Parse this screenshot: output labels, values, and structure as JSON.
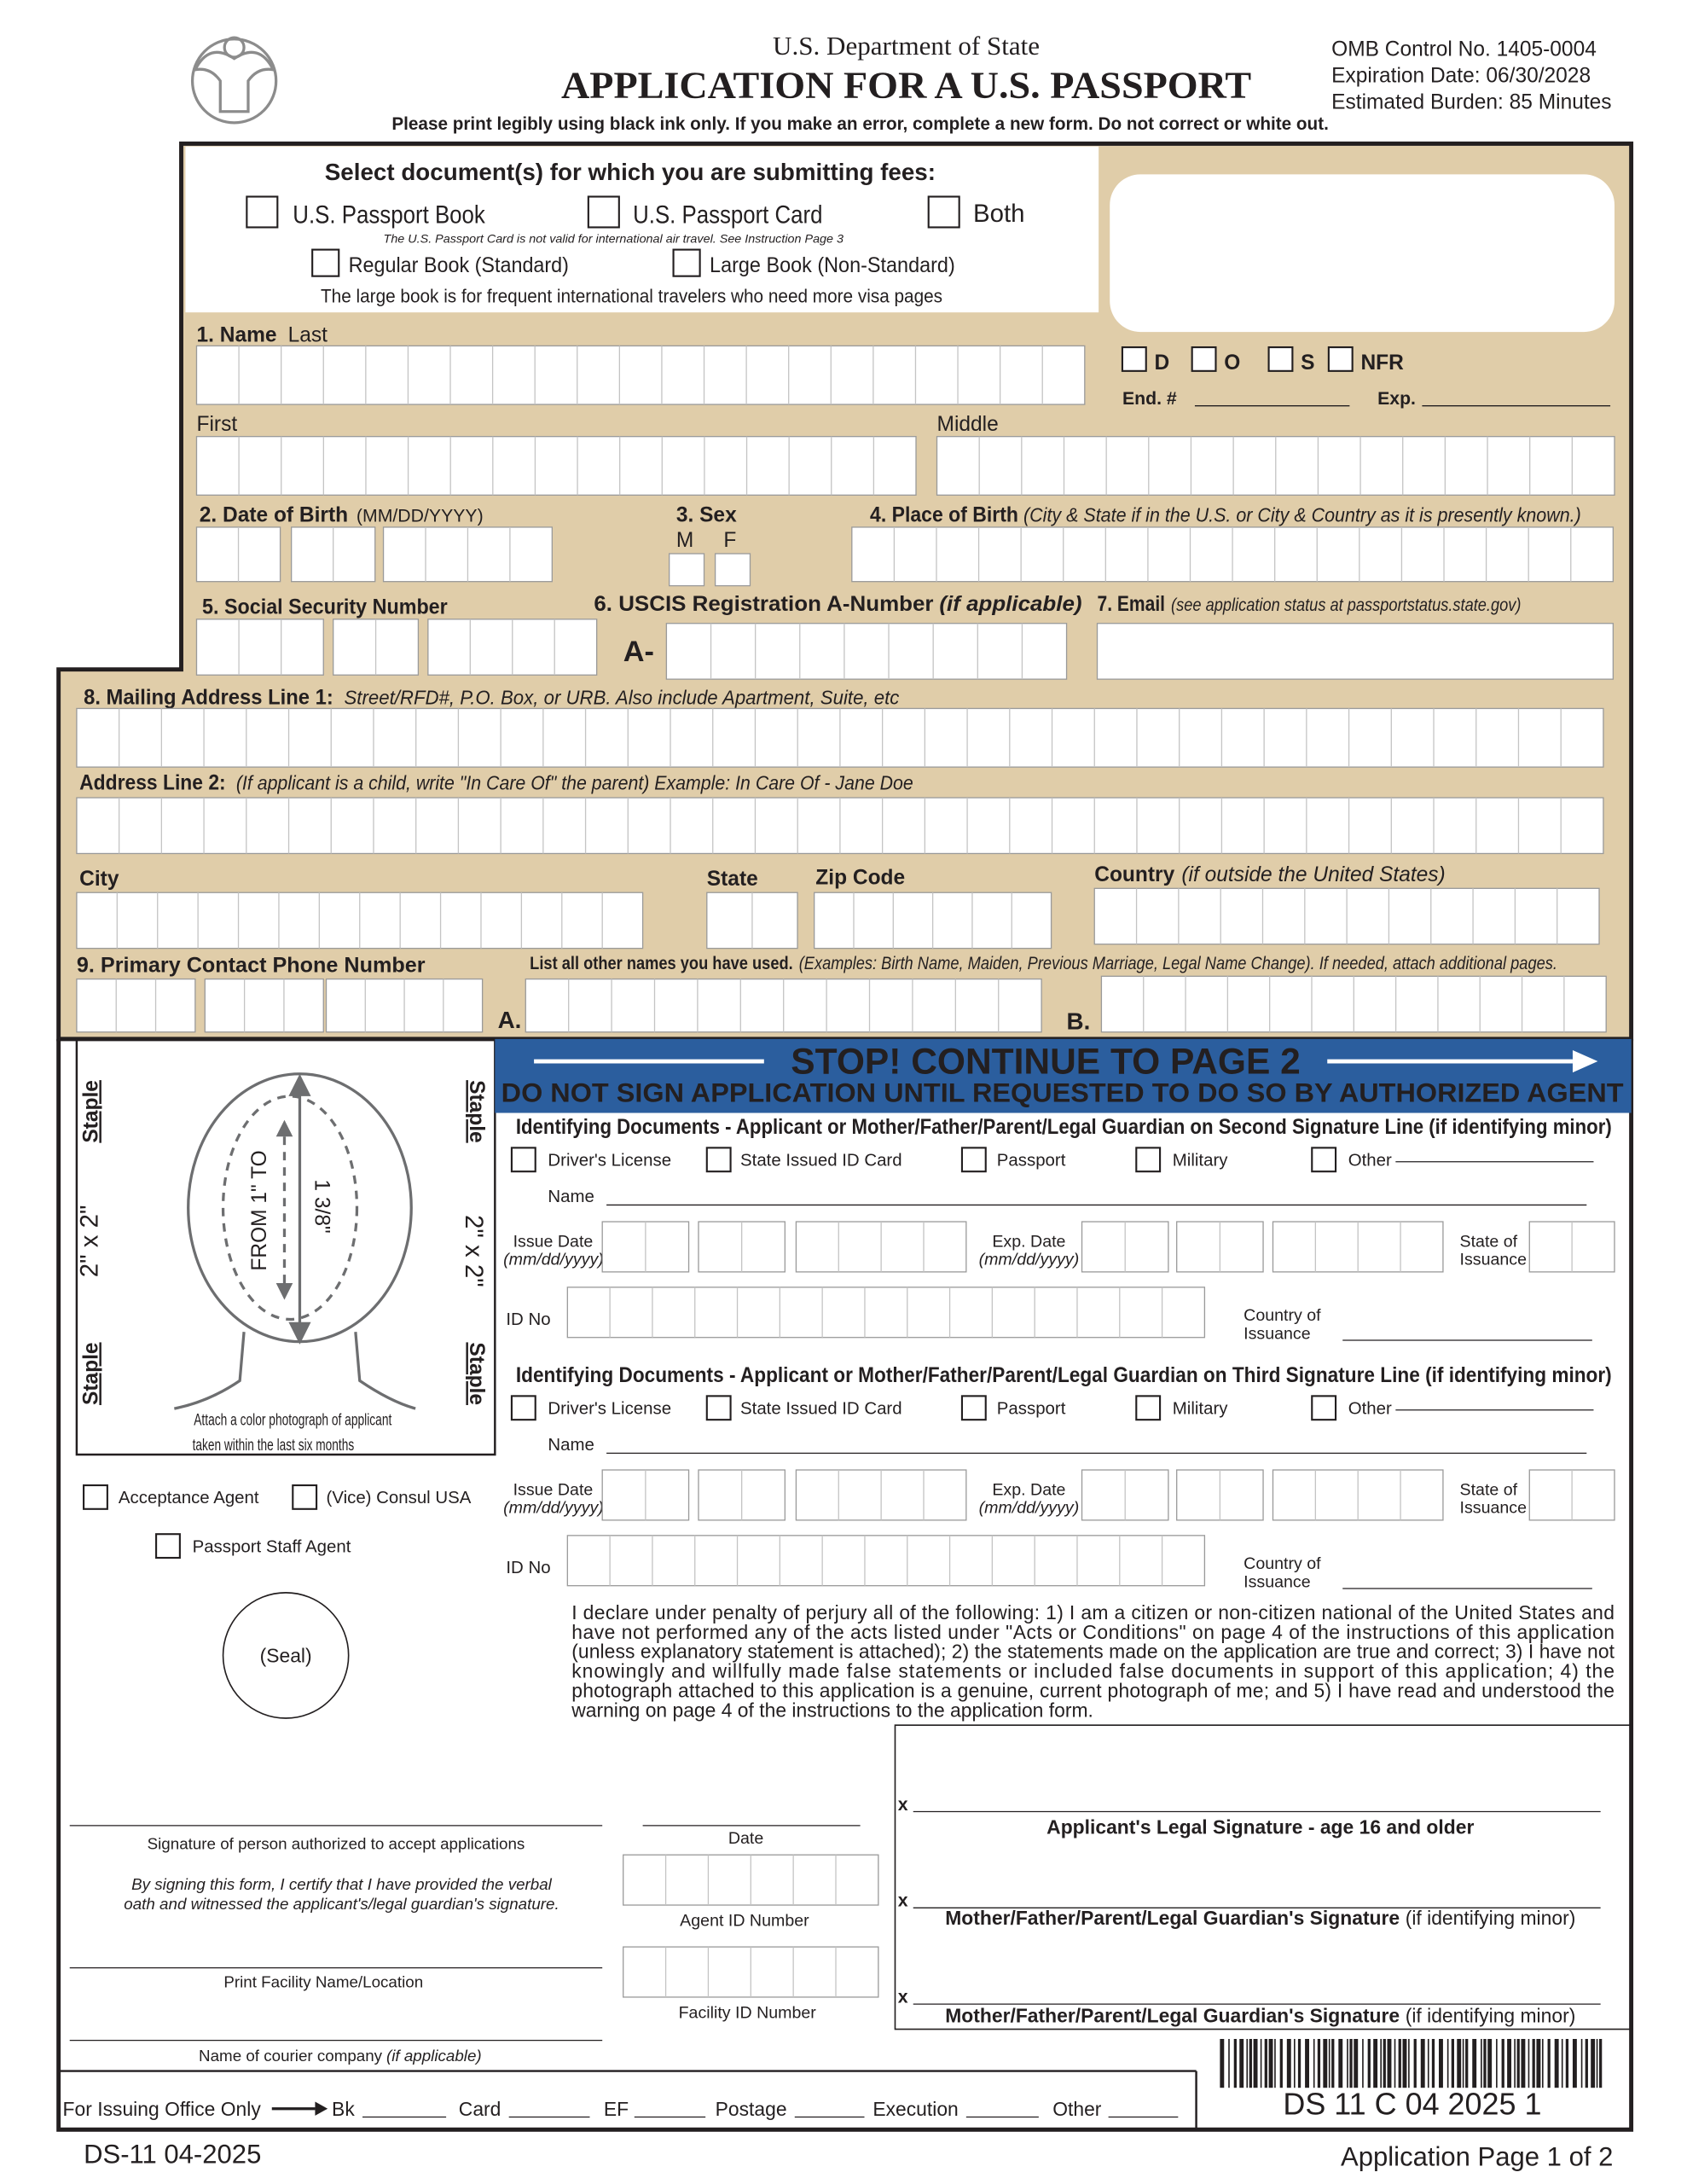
{
  "header": {
    "agency": "U.S. Department of State",
    "title": "APPLICATION FOR A U.S. PASSPORT",
    "instruction": "Please print legibly using black ink only. If you make an error, complete a new form. Do not correct or white out.",
    "omb": "OMB Control No. 1405-0004",
    "expiration": "Expiration Date: 06/30/2028",
    "burden": "Estimated Burden: 85 Minutes"
  },
  "fees": {
    "heading": "Select document(s) for which you are submitting fees:",
    "book": "U.S. Passport Book",
    "card": "U.S. Passport Card",
    "both": "Both",
    "card_note": "The U.S. Passport Card is not valid for international air travel.  See Instruction Page 3",
    "regular": "Regular Book (Standard)",
    "large": "Large Book (Non-Standard)",
    "large_note": "The large book is for frequent international travelers who need more visa pages"
  },
  "office_codes": {
    "d": "D",
    "o": "O",
    "s": "S",
    "nfr": "NFR",
    "end": "End. #",
    "exp": "Exp."
  },
  "fields": {
    "name": "1.  Name",
    "last": "Last",
    "first": "First",
    "middle": "Middle",
    "dob": "2.  Date of Birth",
    "dob_format": "(MM/DD/YYYY)",
    "sex": "3. Sex",
    "m": "M",
    "f": "F",
    "pob": "4. Place of Birth",
    "pob_note": "(City & State if in the U.S. or City & Country as it is presently known.)",
    "ssn": "5. Social Security Number",
    "uscis": "6. USCIS Registration A-Number",
    "uscis_note": "(if applicable)",
    "a_prefix": "A-",
    "email": "7. Email",
    "email_note": "(see application status at passportstatus.state.gov)",
    "address1": "8.  Mailing Address Line 1:",
    "address1_note": "Street/RFD#, P.O. Box, or URB.  Also include Apartment, Suite, etc",
    "address2": "Address Line 2:",
    "address2_note": "(If applicant is a child, write \"In Care Of\" the parent)  Example: In Care Of - Jane Doe",
    "city": "City",
    "state": "State",
    "zip": "Zip Code",
    "country": "Country",
    "country_note": "(if outside the United States)",
    "phone": "9. Primary Contact Phone Number",
    "other_names": "List all other names you have used.",
    "other_names_note": "(Examples: Birth Name, Maiden, Previous Marriage, Legal Name Change).  If needed, attach additional pages.",
    "a": "A.",
    "b": "B."
  },
  "banner": {
    "stop": "STOP! CONTINUE TO PAGE 2",
    "warning": "DO NOT SIGN APPLICATION UNTIL REQUESTED TO DO SO BY AUTHORIZED AGENT"
  },
  "photo": {
    "staple": "Staple",
    "size": "2\" x 2\"",
    "from": "FROM 1\" TO",
    "size_range": "1 3/8\"",
    "caption": [
      "Attach a color photograph of applicant",
      "taken within the last six months"
    ]
  },
  "id_docs": {
    "headings": [
      "Identifying Documents - Applicant or Mother/Father/Parent/Legal Guardian on Second Signature Line (if identifying minor)",
      "Identifying Documents - Applicant or Mother/Father/Parent/Legal Guardian on Third Signature Line (if identifying minor)"
    ],
    "options": [
      "Driver's License",
      "State Issued ID Card",
      "Passport",
      "Military",
      "Other"
    ],
    "name": "Name",
    "issue_date": "Issue Date",
    "date_format": "(mm/dd/yyyy)",
    "exp_date": "Exp. Date",
    "state_of_issuance": [
      "State of",
      "Issuance"
    ],
    "id_no": "ID No",
    "country_of_issuance": [
      "Country of",
      "Issuance"
    ]
  },
  "agent": {
    "acceptance": "Acceptance Agent",
    "consul": "(Vice) Consul USA",
    "staff": "Passport Staff Agent",
    "seal": "(Seal)",
    "signature": "Signature of person authorized to accept applications",
    "certify": [
      "By signing this form, I certify that I have provided the verbal",
      "oath and witnessed the applicant's/legal guardian's signature."
    ],
    "date": "Date",
    "agent_id": "Agent ID Number",
    "facility": "Print Facility Name/Location",
    "facility_id": "Facility ID Number",
    "courier": "Name of courier company",
    "courier_note": "(if applicable)"
  },
  "declaration": [
    "I declare under penalty of perjury all of the following: 1) I am a citizen or non-citizen national of the United States and",
    "have not performed any of the acts listed under \"Acts or Conditions\" on page 4 of the instructions of this application",
    "(unless explanatory statement is attached); 2) the statements made on the application are true and correct; 3) I have not",
    "knowingly and willfully made false statements or included false documents in support of this application; 4) the",
    "photograph attached to this application is a genuine, current photograph of me; and 5) I have read and understood the",
    "warning on page 4 of the instructions to the application form."
  ],
  "signatures": {
    "x": "x",
    "applicant": "Applicant's Legal Signature - age 16 and older",
    "guardian": "Mother/Father/Parent/Legal Guardian's Signature",
    "guardian_note": "(if identifying minor)"
  },
  "office_use": {
    "label": "For Issuing Office Only",
    "fields": [
      "Bk",
      "Card",
      "EF",
      "Postage",
      "Execution",
      "Other"
    ]
  },
  "barcode_text": "DS 11 C 04 2025 1",
  "footer": {
    "form": "DS-11 04-2025",
    "page": "Application Page 1 of 2"
  }
}
